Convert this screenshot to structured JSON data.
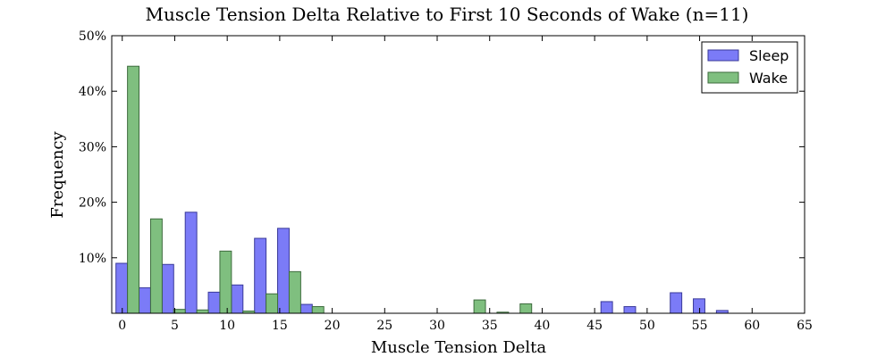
{
  "chart_data": {
    "type": "bar",
    "title": "Muscle Tension Delta Relative to First 10 Seconds of Wake (n=11)",
    "xlabel": "Muscle Tension Delta",
    "ylabel": "Frequency",
    "xlim": [
      -1,
      65
    ],
    "ylim": [
      0,
      50
    ],
    "x_ticks": [
      0,
      5,
      10,
      15,
      20,
      25,
      30,
      35,
      40,
      45,
      50,
      55,
      60,
      65
    ],
    "y_ticks": [
      10,
      20,
      30,
      40,
      50
    ],
    "y_tick_format": "percent",
    "bin_width": 2.2,
    "legend_position": "top-right",
    "series": [
      {
        "name": "Sleep",
        "color": "#7b7bf7",
        "edge": "#3a3a9a",
        "points": [
          {
            "x": -0.6,
            "y": 9.0
          },
          {
            "x": 1.6,
            "y": 4.6
          },
          {
            "x": 3.8,
            "y": 8.8
          },
          {
            "x": 6.0,
            "y": 18.2
          },
          {
            "x": 8.2,
            "y": 3.8
          },
          {
            "x": 10.4,
            "y": 5.1
          },
          {
            "x": 12.6,
            "y": 13.5
          },
          {
            "x": 14.8,
            "y": 15.3
          },
          {
            "x": 17.0,
            "y": 1.6
          },
          {
            "x": 45.6,
            "y": 2.1
          },
          {
            "x": 47.8,
            "y": 1.2
          },
          {
            "x": 52.2,
            "y": 3.7
          },
          {
            "x": 54.4,
            "y": 2.6
          },
          {
            "x": 56.6,
            "y": 0.5
          }
        ]
      },
      {
        "name": "Wake",
        "color": "#7fbf7f",
        "edge": "#3d6b3d",
        "points": [
          {
            "x": 0.5,
            "y": 44.5
          },
          {
            "x": 2.7,
            "y": 17.0
          },
          {
            "x": 4.9,
            "y": 0.7
          },
          {
            "x": 7.1,
            "y": 0.6
          },
          {
            "x": 9.3,
            "y": 11.2
          },
          {
            "x": 11.5,
            "y": 0.4
          },
          {
            "x": 13.7,
            "y": 3.5
          },
          {
            "x": 15.9,
            "y": 7.5
          },
          {
            "x": 18.1,
            "y": 1.2
          },
          {
            "x": 33.5,
            "y": 2.4
          },
          {
            "x": 35.7,
            "y": 0.2
          },
          {
            "x": 37.9,
            "y": 1.7
          }
        ]
      }
    ]
  }
}
